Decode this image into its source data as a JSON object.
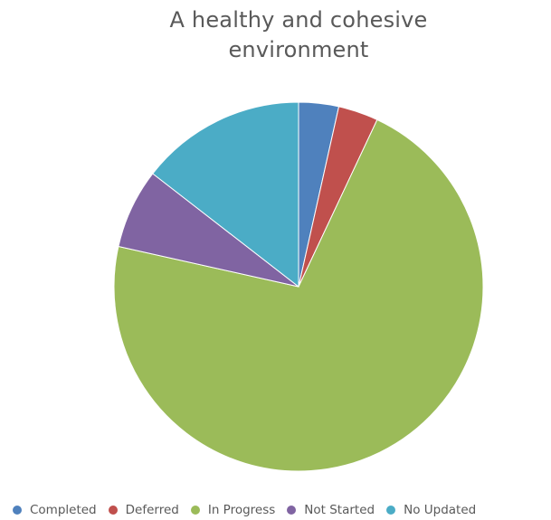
{
  "chart_data": {
    "type": "pie",
    "title_lines": [
      "A healthy and cohesive",
      "environment"
    ],
    "categories": [
      "Completed",
      "Deferred",
      "In Progress",
      "Not Started",
      "No Updated"
    ],
    "values": [
      3.5,
      3.5,
      71.5,
      7.0,
      14.5
    ],
    "colors": [
      "#4F81BD",
      "#C0504D",
      "#9BBB59",
      "#8064A2",
      "#4BACC6"
    ],
    "start_angle_deg": 0,
    "direction": "clockwise",
    "legend_position": "bottom"
  }
}
